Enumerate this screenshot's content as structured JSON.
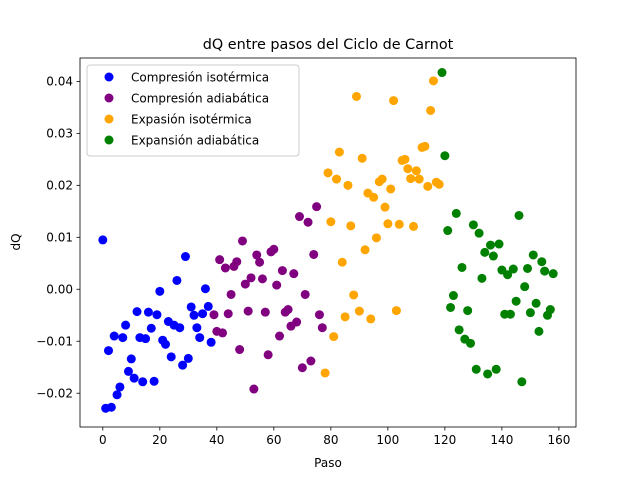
{
  "chart_data": {
    "type": "scatter",
    "title": "dQ entre pasos del Ciclo de Carnot",
    "xlabel": "Paso",
    "ylabel": "dQ",
    "xlim": [
      -8,
      166
    ],
    "ylim": [
      -0.0265,
      0.0445
    ],
    "xticks": [
      0,
      20,
      40,
      60,
      80,
      100,
      120,
      140,
      160
    ],
    "yticks": [
      -0.02,
      -0.01,
      0.0,
      0.01,
      0.02,
      0.03,
      0.04
    ],
    "xtick_labels": [
      "0",
      "20",
      "40",
      "60",
      "80",
      "100",
      "120",
      "140",
      "160"
    ],
    "ytick_labels": [
      "−0.02",
      "−0.01",
      "0.00",
      "0.01",
      "0.02",
      "0.03",
      "0.04"
    ],
    "grid": false,
    "legend_position": "upper-left",
    "series": [
      {
        "name": "Compresión isotérmica",
        "color": "#0000ff",
        "points": [
          [
            0,
            0.0095
          ],
          [
            1,
            -0.0229
          ],
          [
            2,
            -0.0118
          ],
          [
            3,
            -0.0227
          ],
          [
            4,
            -0.009
          ],
          [
            5,
            -0.0203
          ],
          [
            6,
            -0.0188
          ],
          [
            7,
            -0.0093
          ],
          [
            8,
            -0.0069
          ],
          [
            9,
            -0.0158
          ],
          [
            10,
            -0.0134
          ],
          [
            11,
            -0.0171
          ],
          [
            12,
            -0.0043
          ],
          [
            13,
            -0.0093
          ],
          [
            14,
            -0.0178
          ],
          [
            15,
            -0.0095
          ],
          [
            16,
            -0.0044
          ],
          [
            17,
            -0.0075
          ],
          [
            18,
            -0.0177
          ],
          [
            19,
            -0.0049
          ],
          [
            20,
            -0.0004
          ],
          [
            21,
            -0.0098
          ],
          [
            22,
            -0.0106
          ],
          [
            23,
            -0.0062
          ],
          [
            24,
            -0.013
          ],
          [
            25,
            -0.0069
          ],
          [
            26,
            0.0017
          ],
          [
            27,
            -0.0074
          ],
          [
            28,
            -0.0146
          ],
          [
            29,
            0.0063
          ],
          [
            30,
            -0.0133
          ],
          [
            31,
            -0.0034
          ],
          [
            32,
            -0.005
          ],
          [
            33,
            -0.0074
          ],
          [
            34,
            -0.0093
          ],
          [
            35,
            -0.0047
          ],
          [
            36,
            0.0001
          ],
          [
            37,
            -0.0033
          ],
          [
            38,
            -0.0102
          ]
        ]
      },
      {
        "name": "Compresión adiabática",
        "color": "#800080",
        "points": [
          [
            39,
            -0.0049
          ],
          [
            40,
            -0.0081
          ],
          [
            41,
            0.0057
          ],
          [
            42,
            -0.0084
          ],
          [
            43,
            0.0041
          ],
          [
            44,
            -0.0047
          ],
          [
            45,
            -0.001
          ],
          [
            46,
            0.0044
          ],
          [
            47,
            0.0053
          ],
          [
            48,
            -0.0116
          ],
          [
            49,
            0.0093
          ],
          [
            50,
            0.001
          ],
          [
            51,
            -0.0042
          ],
          [
            52,
            0.0022
          ],
          [
            53,
            -0.0192
          ],
          [
            54,
            0.0066
          ],
          [
            55,
            0.0052
          ],
          [
            56,
            0.002
          ],
          [
            57,
            -0.0044
          ],
          [
            58,
            -0.0126
          ],
          [
            59,
            0.0072
          ],
          [
            60,
            0.0077
          ],
          [
            61,
            0.0008
          ],
          [
            62,
            -0.009
          ],
          [
            63,
            0.0036
          ],
          [
            64,
            -0.0044
          ],
          [
            65,
            -0.0039
          ],
          [
            66,
            -0.0071
          ],
          [
            67,
            0.003
          ],
          [
            68,
            -0.0063
          ],
          [
            69,
            0.014
          ],
          [
            70,
            -0.0151
          ],
          [
            71,
            -0.001
          ],
          [
            72,
            0.0129
          ],
          [
            73,
            -0.0138
          ],
          [
            74,
            0.0067
          ],
          [
            75,
            0.0159
          ],
          [
            76,
            -0.0049
          ],
          [
            77,
            -0.0074
          ]
        ]
      },
      {
        "name": "Expasión isotérmica",
        "color": "#ffa500",
        "points": [
          [
            78,
            -0.0161
          ],
          [
            79,
            0.0224
          ],
          [
            80,
            0.013
          ],
          [
            81,
            -0.0091
          ],
          [
            82,
            0.0212
          ],
          [
            83,
            0.0264
          ],
          [
            84,
            0.0052
          ],
          [
            85,
            -0.0053
          ],
          [
            86,
            0.02
          ],
          [
            87,
            0.0122
          ],
          [
            88,
            -0.0011
          ],
          [
            89,
            0.0371
          ],
          [
            90,
            -0.0042
          ],
          [
            91,
            0.0252
          ],
          [
            92,
            0.0076
          ],
          [
            93,
            0.0185
          ],
          [
            94,
            -0.0057
          ],
          [
            95,
            0.0177
          ],
          [
            96,
            0.0099
          ],
          [
            97,
            0.0207
          ],
          [
            98,
            0.0212
          ],
          [
            99,
            0.0158
          ],
          [
            100,
            0.0126
          ],
          [
            101,
            0.0193
          ],
          [
            102,
            0.0363
          ],
          [
            103,
            -0.0041
          ],
          [
            104,
            0.0125
          ],
          [
            105,
            0.0248
          ],
          [
            106,
            0.025
          ],
          [
            107,
            0.0232
          ],
          [
            108,
            0.0213
          ],
          [
            109,
            0.0121
          ],
          [
            110,
            0.0228
          ],
          [
            111,
            0.0212
          ],
          [
            112,
            0.0273
          ],
          [
            113,
            0.0275
          ],
          [
            114,
            0.0198
          ],
          [
            115,
            0.0344
          ],
          [
            116,
            0.0401
          ],
          [
            117,
            0.0206
          ],
          [
            118,
            0.0202
          ]
        ]
      },
      {
        "name": "Expansión adiabática",
        "color": "#008000",
        "points": [
          [
            119,
            0.0417
          ],
          [
            120,
            0.0257
          ],
          [
            121,
            0.0113
          ],
          [
            122,
            -0.0035
          ],
          [
            123,
            -0.0012
          ],
          [
            124,
            0.0146
          ],
          [
            125,
            -0.0078
          ],
          [
            126,
            0.0042
          ],
          [
            127,
            -0.0096
          ],
          [
            128,
            -0.0041
          ],
          [
            129,
            -0.0104
          ],
          [
            130,
            0.0124
          ],
          [
            131,
            -0.0154
          ],
          [
            132,
            0.0108
          ],
          [
            133,
            0.0021
          ],
          [
            134,
            0.0071
          ],
          [
            135,
            -0.0163
          ],
          [
            136,
            0.0085
          ],
          [
            137,
            0.0064
          ],
          [
            138,
            -0.0154
          ],
          [
            139,
            0.0087
          ],
          [
            140,
            0.0037
          ],
          [
            141,
            -0.0048
          ],
          [
            142,
            0.0028
          ],
          [
            143,
            -0.0048
          ],
          [
            144,
            0.0039
          ],
          [
            145,
            -0.0023
          ],
          [
            146,
            0.0142
          ],
          [
            147,
            -0.0178
          ],
          [
            148,
            0.0005
          ],
          [
            149,
            0.004
          ],
          [
            150,
            -0.0045
          ],
          [
            151,
            0.0066
          ],
          [
            152,
            -0.0027
          ],
          [
            153,
            -0.0081
          ],
          [
            154,
            0.0053
          ],
          [
            155,
            0.0035
          ],
          [
            156,
            -0.005
          ],
          [
            157,
            -0.0039
          ],
          [
            158,
            0.003
          ]
        ]
      }
    ]
  }
}
